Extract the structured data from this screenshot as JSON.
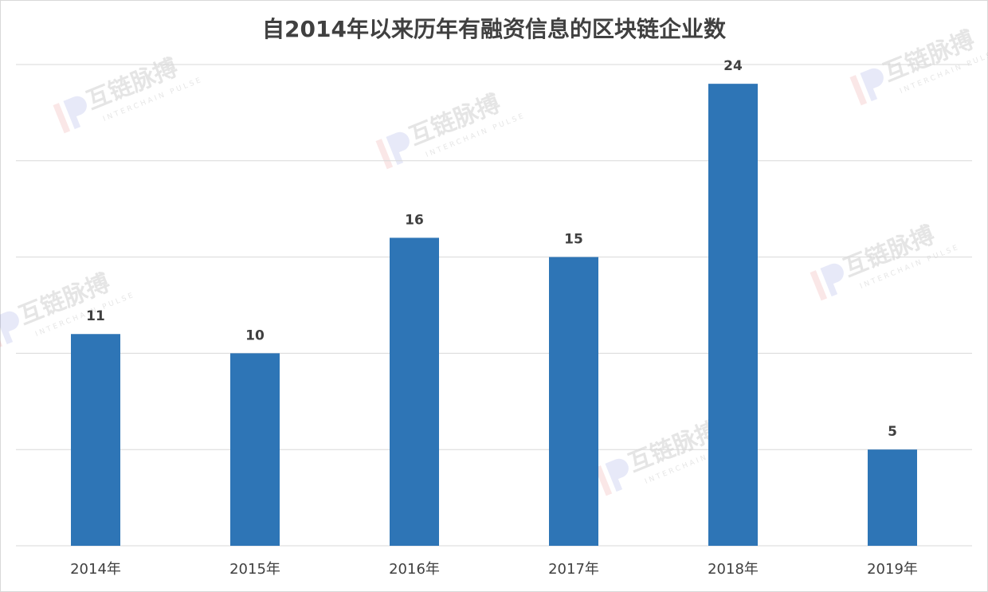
{
  "chart_data": {
    "type": "bar",
    "title": "自2014年以来历年有融资信息的区块链企业数",
    "categories": [
      "2014年",
      "2015年",
      "2016年",
      "2017年",
      "2018年",
      "2019年"
    ],
    "values": [
      11,
      10,
      16,
      15,
      24,
      5
    ],
    "color": "#2e75b6",
    "ylim": [
      0,
      25
    ],
    "yticks": [
      0,
      5,
      10,
      15,
      20,
      25
    ],
    "grid": true,
    "watermark": {
      "text": "互链脉搏",
      "subtext": "INTERCHAIN PULSE"
    }
  }
}
